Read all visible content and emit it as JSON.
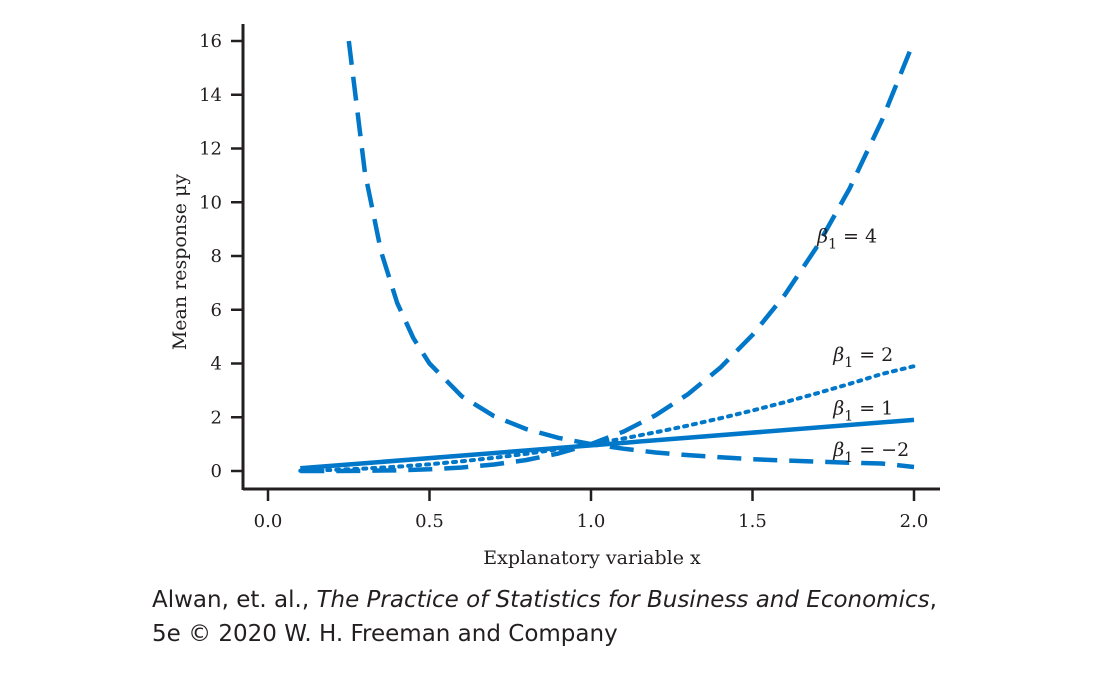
{
  "chart_data": {
    "type": "line",
    "xlabel": "Explanatory variable x",
    "ylabel": "Mean response μy",
    "xlim": [
      0.0,
      2.0
    ],
    "ylim": [
      0,
      16
    ],
    "x_ticks": [
      "0.0",
      "0.5",
      "1.0",
      "1.5",
      "2.0"
    ],
    "y_ticks": [
      "0",
      "2",
      "4",
      "6",
      "8",
      "10",
      "12",
      "14",
      "16"
    ],
    "color": "#0077c8",
    "series": [
      {
        "name": "β1 = 4",
        "style": "dashed",
        "x": [
          0.1,
          0.2,
          0.3,
          0.4,
          0.5,
          0.6,
          0.7,
          0.8,
          0.9,
          1.0,
          1.1,
          1.2,
          1.3,
          1.4,
          1.5,
          1.6,
          1.7,
          1.8,
          1.9,
          2.0
        ],
        "y": [
          0.0001,
          0.0016,
          0.0081,
          0.0256,
          0.0625,
          0.1296,
          0.2401,
          0.4096,
          0.6561,
          1.0,
          1.4641,
          2.0736,
          2.8561,
          3.8416,
          5.0625,
          6.5536,
          8.3521,
          10.4976,
          13.0321,
          16.0
        ]
      },
      {
        "name": "β1 = 2",
        "style": "dotted",
        "x": [
          0.1,
          0.2,
          0.3,
          0.4,
          0.5,
          0.6,
          0.7,
          0.8,
          0.9,
          1.0,
          1.1,
          1.2,
          1.3,
          1.4,
          1.5,
          1.6,
          1.7,
          1.8,
          1.9,
          2.0
        ],
        "y": [
          0.01,
          0.04,
          0.09,
          0.16,
          0.25,
          0.36,
          0.49,
          0.64,
          0.81,
          1.0,
          1.21,
          1.44,
          1.69,
          1.96,
          2.25,
          2.56,
          2.89,
          3.24,
          3.61,
          3.9
        ]
      },
      {
        "name": "β1 = 1",
        "style": "solid",
        "x": [
          0.1,
          2.0
        ],
        "y": [
          0.1,
          1.9
        ]
      },
      {
        "name": "β1 = −2",
        "style": "dashed",
        "x": [
          0.25,
          0.3,
          0.35,
          0.4,
          0.45,
          0.5,
          0.6,
          0.7,
          0.8,
          0.9,
          1.0,
          1.1,
          1.2,
          1.3,
          1.4,
          1.5,
          1.6,
          1.7,
          1.8,
          1.9,
          2.0
        ],
        "y": [
          16.0,
          11.11,
          8.16,
          6.25,
          4.94,
          4.0,
          2.78,
          2.04,
          1.56,
          1.23,
          1.0,
          0.83,
          0.69,
          0.59,
          0.51,
          0.44,
          0.39,
          0.35,
          0.31,
          0.28,
          0.15
        ]
      }
    ],
    "series_labels": [
      {
        "beta": "β",
        "sub": "1",
        "rel": " = 4",
        "x": 1.7,
        "y": 8.5
      },
      {
        "beta": "β",
        "sub": "1",
        "rel": " = 2",
        "x": 1.75,
        "y": 4.1
      },
      {
        "beta": "β",
        "sub": "1",
        "rel": " = 1",
        "x": 1.75,
        "y": 2.1
      },
      {
        "beta": "β",
        "sub": "1",
        "rel": " = −2",
        "x": 1.75,
        "y": 0.55
      }
    ]
  },
  "credit": {
    "authors": "Alwan, et. al., ",
    "book_title": "The Practice of Statistics for Business and Economics",
    "comma": ",",
    "line2": "5e © 2020 W. H. Freeman and Company"
  }
}
